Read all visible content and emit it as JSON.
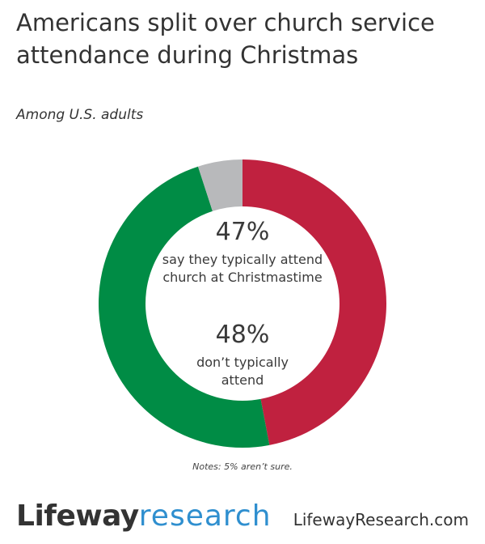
{
  "chart_data": {
    "type": "pie",
    "title": "Americans split over church service attendance during Christmas",
    "subtitle": "Among U.S. adults",
    "slices": [
      {
        "label": "say they typically attend church at Christmastime",
        "value": 47,
        "color": "#c0213f"
      },
      {
        "label": "don’t typically attend",
        "value": 48,
        "color": "#008c45"
      },
      {
        "label": "aren’t sure",
        "value": 5,
        "color": "#b8b9bb"
      }
    ],
    "annotations": [
      {
        "value_label": "47%",
        "text": "say they typically attend church at Christmastime"
      },
      {
        "value_label": "48%",
        "text": "don’t typically attend"
      }
    ],
    "notes": "Notes: 5% aren’t sure.",
    "donut": true
  },
  "footer": {
    "logo_part1": "Lifeway",
    "logo_part2": "research",
    "url": "LifewayResearch.com"
  }
}
